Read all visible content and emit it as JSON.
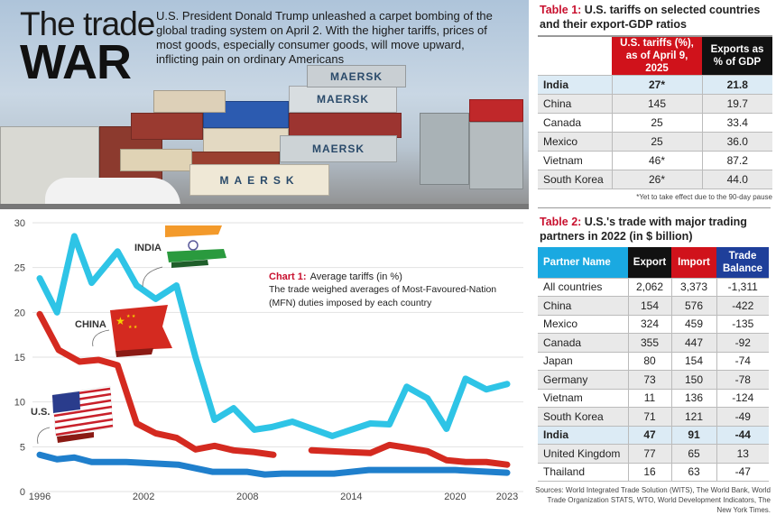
{
  "header": {
    "title_line1": "The trade",
    "title_line2": "WAR",
    "lede": "U.S. President Donald Trump unleashed a carpet bombing of the global trading system on April 2. With the higher tariffs, prices of most goods, especially consumer goods, will move upward, inflicting pain on ordinary Americans",
    "photo_logo_text": "MAERSK"
  },
  "chart_data": {
    "type": "line",
    "title_label": "Chart 1:",
    "title": "Average tariffs (in %)",
    "subtitle": "The trade weighed averages of Most-Favoured-Nation (MFN) duties imposed by each country",
    "xlim": [
      1996,
      2023
    ],
    "ylim": [
      0,
      30
    ],
    "x_ticks": [
      1996,
      2002,
      2008,
      2014,
      2020,
      2023
    ],
    "y_ticks": [
      0,
      5,
      10,
      15,
      20,
      25,
      30
    ],
    "grid": "horizontal",
    "series": [
      {
        "name": "INDIA",
        "color": "#2ec4e6",
        "points": [
          [
            1996,
            23.8
          ],
          [
            1997,
            20
          ],
          [
            1998,
            28.5
          ],
          [
            1999,
            23.3
          ],
          [
            2000.5,
            26.8
          ],
          [
            2001.6,
            23
          ],
          [
            2002.7,
            21.5
          ],
          [
            2003.9,
            23
          ],
          [
            2005,
            15
          ],
          [
            2006.1,
            8
          ],
          [
            2007.2,
            9.3
          ],
          [
            2008.4,
            6.9
          ],
          [
            2009.4,
            7.2
          ],
          [
            2010.6,
            7.8
          ],
          [
            2012.9,
            6.2
          ],
          [
            2015.1,
            7.6
          ],
          [
            2016.2,
            7.5
          ],
          [
            2017.2,
            11.7
          ],
          [
            2018.4,
            10.4
          ],
          [
            2019.5,
            7
          ],
          [
            2020.6,
            12.6
          ],
          [
            2021.8,
            11.4
          ],
          [
            2023,
            12
          ]
        ]
      },
      {
        "name": "CHINA",
        "color": "#d42a20",
        "points": [
          [
            1996,
            19.8
          ],
          [
            1997.1,
            15.8
          ],
          [
            1998.3,
            14.5
          ],
          [
            1999.4,
            14.7
          ],
          [
            2000.5,
            14.1
          ],
          [
            2001.6,
            7.6
          ],
          [
            2002.7,
            6.5
          ],
          [
            2003.9,
            6
          ],
          [
            2005,
            4.7
          ],
          [
            2006.1,
            5.1
          ],
          [
            2007.2,
            4.6
          ],
          [
            2008.4,
            4.4
          ],
          [
            2009.5,
            4.1
          ],
          [
            null,
            null
          ],
          [
            2011.7,
            4.6
          ],
          [
            2015.1,
            4.3
          ],
          [
            2016.2,
            5.2
          ],
          [
            2017.2,
            4.9
          ],
          [
            2018.4,
            4.5
          ],
          [
            2019.5,
            3.5
          ],
          [
            2020.6,
            3.3
          ],
          [
            2021.8,
            3.3
          ],
          [
            2023,
            3.0
          ]
        ]
      },
      {
        "name": "U.S.",
        "color": "#1f7fcc",
        "points": [
          [
            1996,
            4.1
          ],
          [
            1997,
            3.6
          ],
          [
            1998,
            3.8
          ],
          [
            1999,
            3.3
          ],
          [
            2001,
            3.3
          ],
          [
            2004,
            3.0
          ],
          [
            2005,
            2.6
          ],
          [
            2006,
            2.2
          ],
          [
            2008,
            2.2
          ],
          [
            2009,
            1.9
          ],
          [
            2010,
            2.0
          ],
          [
            2013,
            2.0
          ],
          [
            2015,
            2.4
          ],
          [
            2017,
            2.4
          ],
          [
            2020,
            2.4
          ],
          [
            2023,
            2.1
          ]
        ]
      }
    ]
  },
  "table1": {
    "label": "Table 1:",
    "title": "U.S. tariffs on selected countries and their export-GDP ratios",
    "headers": [
      "",
      "U.S. tariffs (%), as of April 9, 2025",
      "Exports as % of GDP"
    ],
    "header_colors": [
      "#ffffff",
      "#d0121b",
      "#111111"
    ],
    "rows": [
      [
        "India",
        "27*",
        "21.8"
      ],
      [
        "China",
        "145",
        "19.7"
      ],
      [
        "Canada",
        "25",
        "33.4"
      ],
      [
        "Mexico",
        "25",
        "36.0"
      ],
      [
        "Vietnam",
        "46*",
        "87.2"
      ],
      [
        "South Korea",
        "26*",
        "44.0"
      ]
    ],
    "note": "*Yet to take effect due to the 90-day pause"
  },
  "table2": {
    "label": "Table 2:",
    "title": "U.S.'s trade with major trading partners in 2022 (in $ billion)",
    "headers": [
      "Partner Name",
      "Export",
      "Import",
      "Trade Balance"
    ],
    "header_colors": [
      "#1aa9e1",
      "#111111",
      "#d0121b",
      "#1f3f9a"
    ],
    "rows": [
      [
        "All countries",
        "2,062",
        "3,373",
        "-1,311"
      ],
      [
        "China",
        "154",
        "576",
        "-422"
      ],
      [
        "Mexico",
        "324",
        "459",
        "-135"
      ],
      [
        "Canada",
        "355",
        "447",
        "-92"
      ],
      [
        "Japan",
        "80",
        "154",
        "-74"
      ],
      [
        "Germany",
        "73",
        "150",
        "-78"
      ],
      [
        "Vietnam",
        "11",
        "136",
        "-124"
      ],
      [
        "South Korea",
        "71",
        "121",
        "-49"
      ],
      [
        "India",
        "47",
        "91",
        "-44"
      ],
      [
        "United Kingdom",
        "77",
        "65",
        "13"
      ],
      [
        "Thailand",
        "16",
        "63",
        "-47"
      ]
    ],
    "sources": "Sources: World Integrated Trade Solution (WITS), The World Bank, World Trade Organization STATS, WTO, World Development Indicators, The New York Times."
  }
}
